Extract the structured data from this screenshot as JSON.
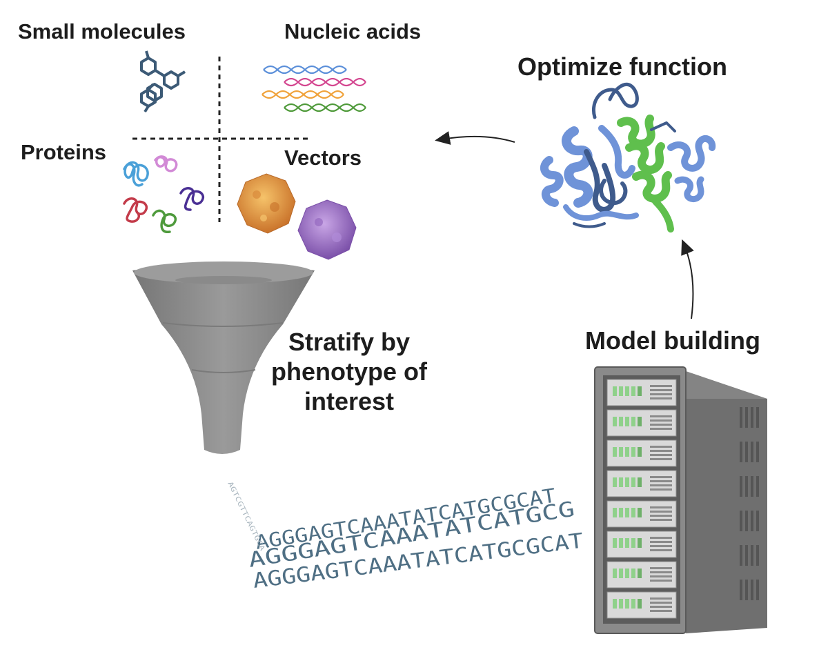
{
  "labels": {
    "small_molecules": "Small molecules",
    "nucleic_acids": "Nucleic acids",
    "proteins": "Proteins",
    "vectors": "Vectors",
    "optimize_function": "Optimize function",
    "stratify_line1": "Stratify by",
    "stratify_line2": "phenotype of",
    "stratify_line3": "interest",
    "model_building": "Model building"
  },
  "sequences": {
    "row1": "AGGGAGTCAAATATCATGCGCAT",
    "row2": "AGGGAGTCAAATATCATGCG",
    "row3": "AGGGAGTCAAATATCATGCGCAT",
    "scatter": "AGTCGTTCAGTGCA"
  },
  "colors": {
    "helix_blue": "#6f93d8",
    "helix_dark": "#3f5b8c",
    "helix_green": "#5fbf4d",
    "funnel": "#8a8a8a",
    "server_body": "#7d7d7d",
    "dna_blue": "#5b8fd9",
    "dna_pink": "#d3458f",
    "dna_orange": "#f0a23a",
    "dna_green": "#4f9a3a",
    "vector_orange": "#e6a445",
    "vector_purple": "#9b6fc3"
  }
}
